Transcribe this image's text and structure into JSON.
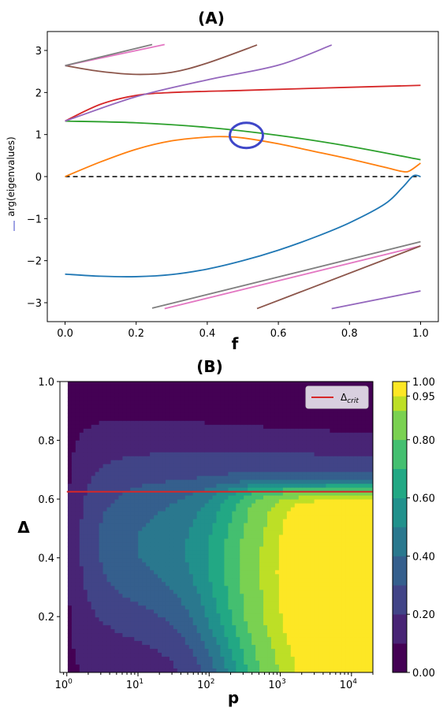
{
  "chart_data": [
    {
      "type": "line",
      "title": "(A)",
      "xlabel": "f",
      "ylabel": "arg(eigenvalues)",
      "xlim": [
        -0.05,
        1.05
      ],
      "ylim": [
        -3.45,
        3.45
      ],
      "xticks": [
        0.0,
        0.2,
        0.4,
        0.6,
        0.8,
        1.0
      ],
      "xtick_labels": [
        "0.0",
        "0.2",
        "0.4",
        "0.6",
        "0.8",
        "1.0"
      ],
      "yticks": [
        -3,
        -2,
        -1,
        0,
        1,
        2,
        3
      ],
      "ytick_labels": [
        "−3",
        "−2",
        "−1",
        "0",
        "1",
        "2",
        "3"
      ],
      "series": [
        {
          "color": "#1f77b4",
          "points": [
            [
              0,
              -2.32
            ],
            [
              0.1,
              -2.37
            ],
            [
              0.2,
              -2.38
            ],
            [
              0.3,
              -2.33
            ],
            [
              0.4,
              -2.2
            ],
            [
              0.5,
              -2.0
            ],
            [
              0.6,
              -1.75
            ],
            [
              0.7,
              -1.45
            ],
            [
              0.8,
              -1.1
            ],
            [
              0.9,
              -0.65
            ],
            [
              0.95,
              -0.25
            ],
            [
              0.98,
              0.02
            ],
            [
              1.0,
              0.0
            ]
          ]
        },
        {
          "color": "#ff7f0e",
          "points": [
            [
              0,
              0
            ],
            [
              0.1,
              0.35
            ],
            [
              0.2,
              0.65
            ],
            [
              0.3,
              0.85
            ],
            [
              0.4,
              0.94
            ],
            [
              0.45,
              0.95
            ],
            [
              0.5,
              0.92
            ],
            [
              0.6,
              0.78
            ],
            [
              0.7,
              0.6
            ],
            [
              0.8,
              0.42
            ],
            [
              0.9,
              0.22
            ],
            [
              0.95,
              0.12
            ],
            [
              0.97,
              0.14
            ],
            [
              1.0,
              0.32
            ]
          ]
        },
        {
          "color": "#2ca02c",
          "points": [
            [
              0,
              1.32
            ],
            [
              0.2,
              1.28
            ],
            [
              0.4,
              1.17
            ],
            [
              0.6,
              0.98
            ],
            [
              0.8,
              0.72
            ],
            [
              1.0,
              0.4
            ]
          ]
        },
        {
          "color": "#d62728",
          "points": [
            [
              0,
              1.32
            ],
            [
              0.1,
              1.72
            ],
            [
              0.2,
              1.93
            ],
            [
              0.3,
              2.0
            ],
            [
              0.5,
              2.05
            ],
            [
              0.7,
              2.1
            ],
            [
              1.0,
              2.17
            ]
          ]
        },
        {
          "color": "#9467bd",
          "points": [
            [
              0,
              1.32
            ],
            [
              0.2,
              1.9
            ],
            [
              0.4,
              2.3
            ],
            [
              0.6,
              2.65
            ],
            [
              0.75,
              3.13
            ]
          ]
        },
        {
          "color": "#8c564b",
          "points": [
            [
              0,
              2.64
            ],
            [
              0.1,
              2.5
            ],
            [
              0.2,
              2.43
            ],
            [
              0.3,
              2.48
            ],
            [
              0.4,
              2.7
            ],
            [
              0.54,
              3.13
            ]
          ]
        },
        {
          "color": "#e377c2",
          "points": [
            [
              0,
              2.64
            ],
            [
              0.28,
              3.14
            ]
          ]
        },
        {
          "color": "#7f7f7f",
          "points": [
            [
              0,
              2.64
            ],
            [
              0.245,
              3.14
            ]
          ]
        },
        {
          "color": "#7f7f7f",
          "points": [
            [
              0.245,
              -3.13
            ],
            [
              1.0,
              -1.55
            ]
          ]
        },
        {
          "color": "#e377c2",
          "points": [
            [
              0.28,
              -3.14
            ],
            [
              1.0,
              -1.65
            ]
          ]
        },
        {
          "color": "#8c564b",
          "points": [
            [
              0.54,
              -3.14
            ],
            [
              1.0,
              -1.65
            ]
          ]
        },
        {
          "color": "#9467bd",
          "points": [
            [
              0.75,
              -3.14
            ],
            [
              1.0,
              -2.72
            ]
          ]
        }
      ],
      "reference_line": {
        "y": 0,
        "style": "dashed",
        "color": "#000000"
      },
      "annotation": {
        "shape": "ellipse",
        "center": [
          0.51,
          0.98
        ],
        "color": "#3f47c8"
      }
    },
    {
      "type": "heatmap",
      "subtype": "filled-contour",
      "title": "(B)",
      "xlabel": "p",
      "ylabel": "Δ",
      "xscale": "log",
      "xlim": [
        0.8,
        20000
      ],
      "ylim": [
        0.01,
        1.0
      ],
      "xticks": [
        1,
        10,
        100,
        1000,
        10000
      ],
      "xtick_labels": [
        "10",
        "10",
        "10",
        "10",
        "10"
      ],
      "xtick_exponents": [
        "0",
        "1",
        "2",
        "3",
        "4"
      ],
      "yticks": [
        0.2,
        0.4,
        0.6,
        0.8,
        1.0
      ],
      "ytick_labels": [
        "0.2",
        "0.4",
        "0.6",
        "0.8",
        "1.0"
      ],
      "colorbar": {
        "ticks": [
          0.0,
          0.2,
          0.4,
          0.6,
          0.8,
          0.95,
          1.0
        ],
        "tick_labels": [
          "0.00",
          "0.20",
          "0.40",
          "0.60",
          "0.80",
          "0.95",
          "1.00"
        ],
        "levels": [
          0.0,
          0.1,
          0.2,
          0.3,
          0.4,
          0.5,
          0.6,
          0.7,
          0.8,
          0.9,
          0.95,
          1.0
        ],
        "colors": [
          "#440154",
          "#482475",
          "#414487",
          "#355f8d",
          "#2a788e",
          "#21918c",
          "#22a884",
          "#44bf70",
          "#7ad151",
          "#bddf26",
          "#fde725"
        ]
      },
      "critical_line": {
        "y": 0.625,
        "color": "#d62728"
      },
      "legend": {
        "label": "Δ",
        "subscript": "crit",
        "position": "top-right"
      }
    }
  ]
}
